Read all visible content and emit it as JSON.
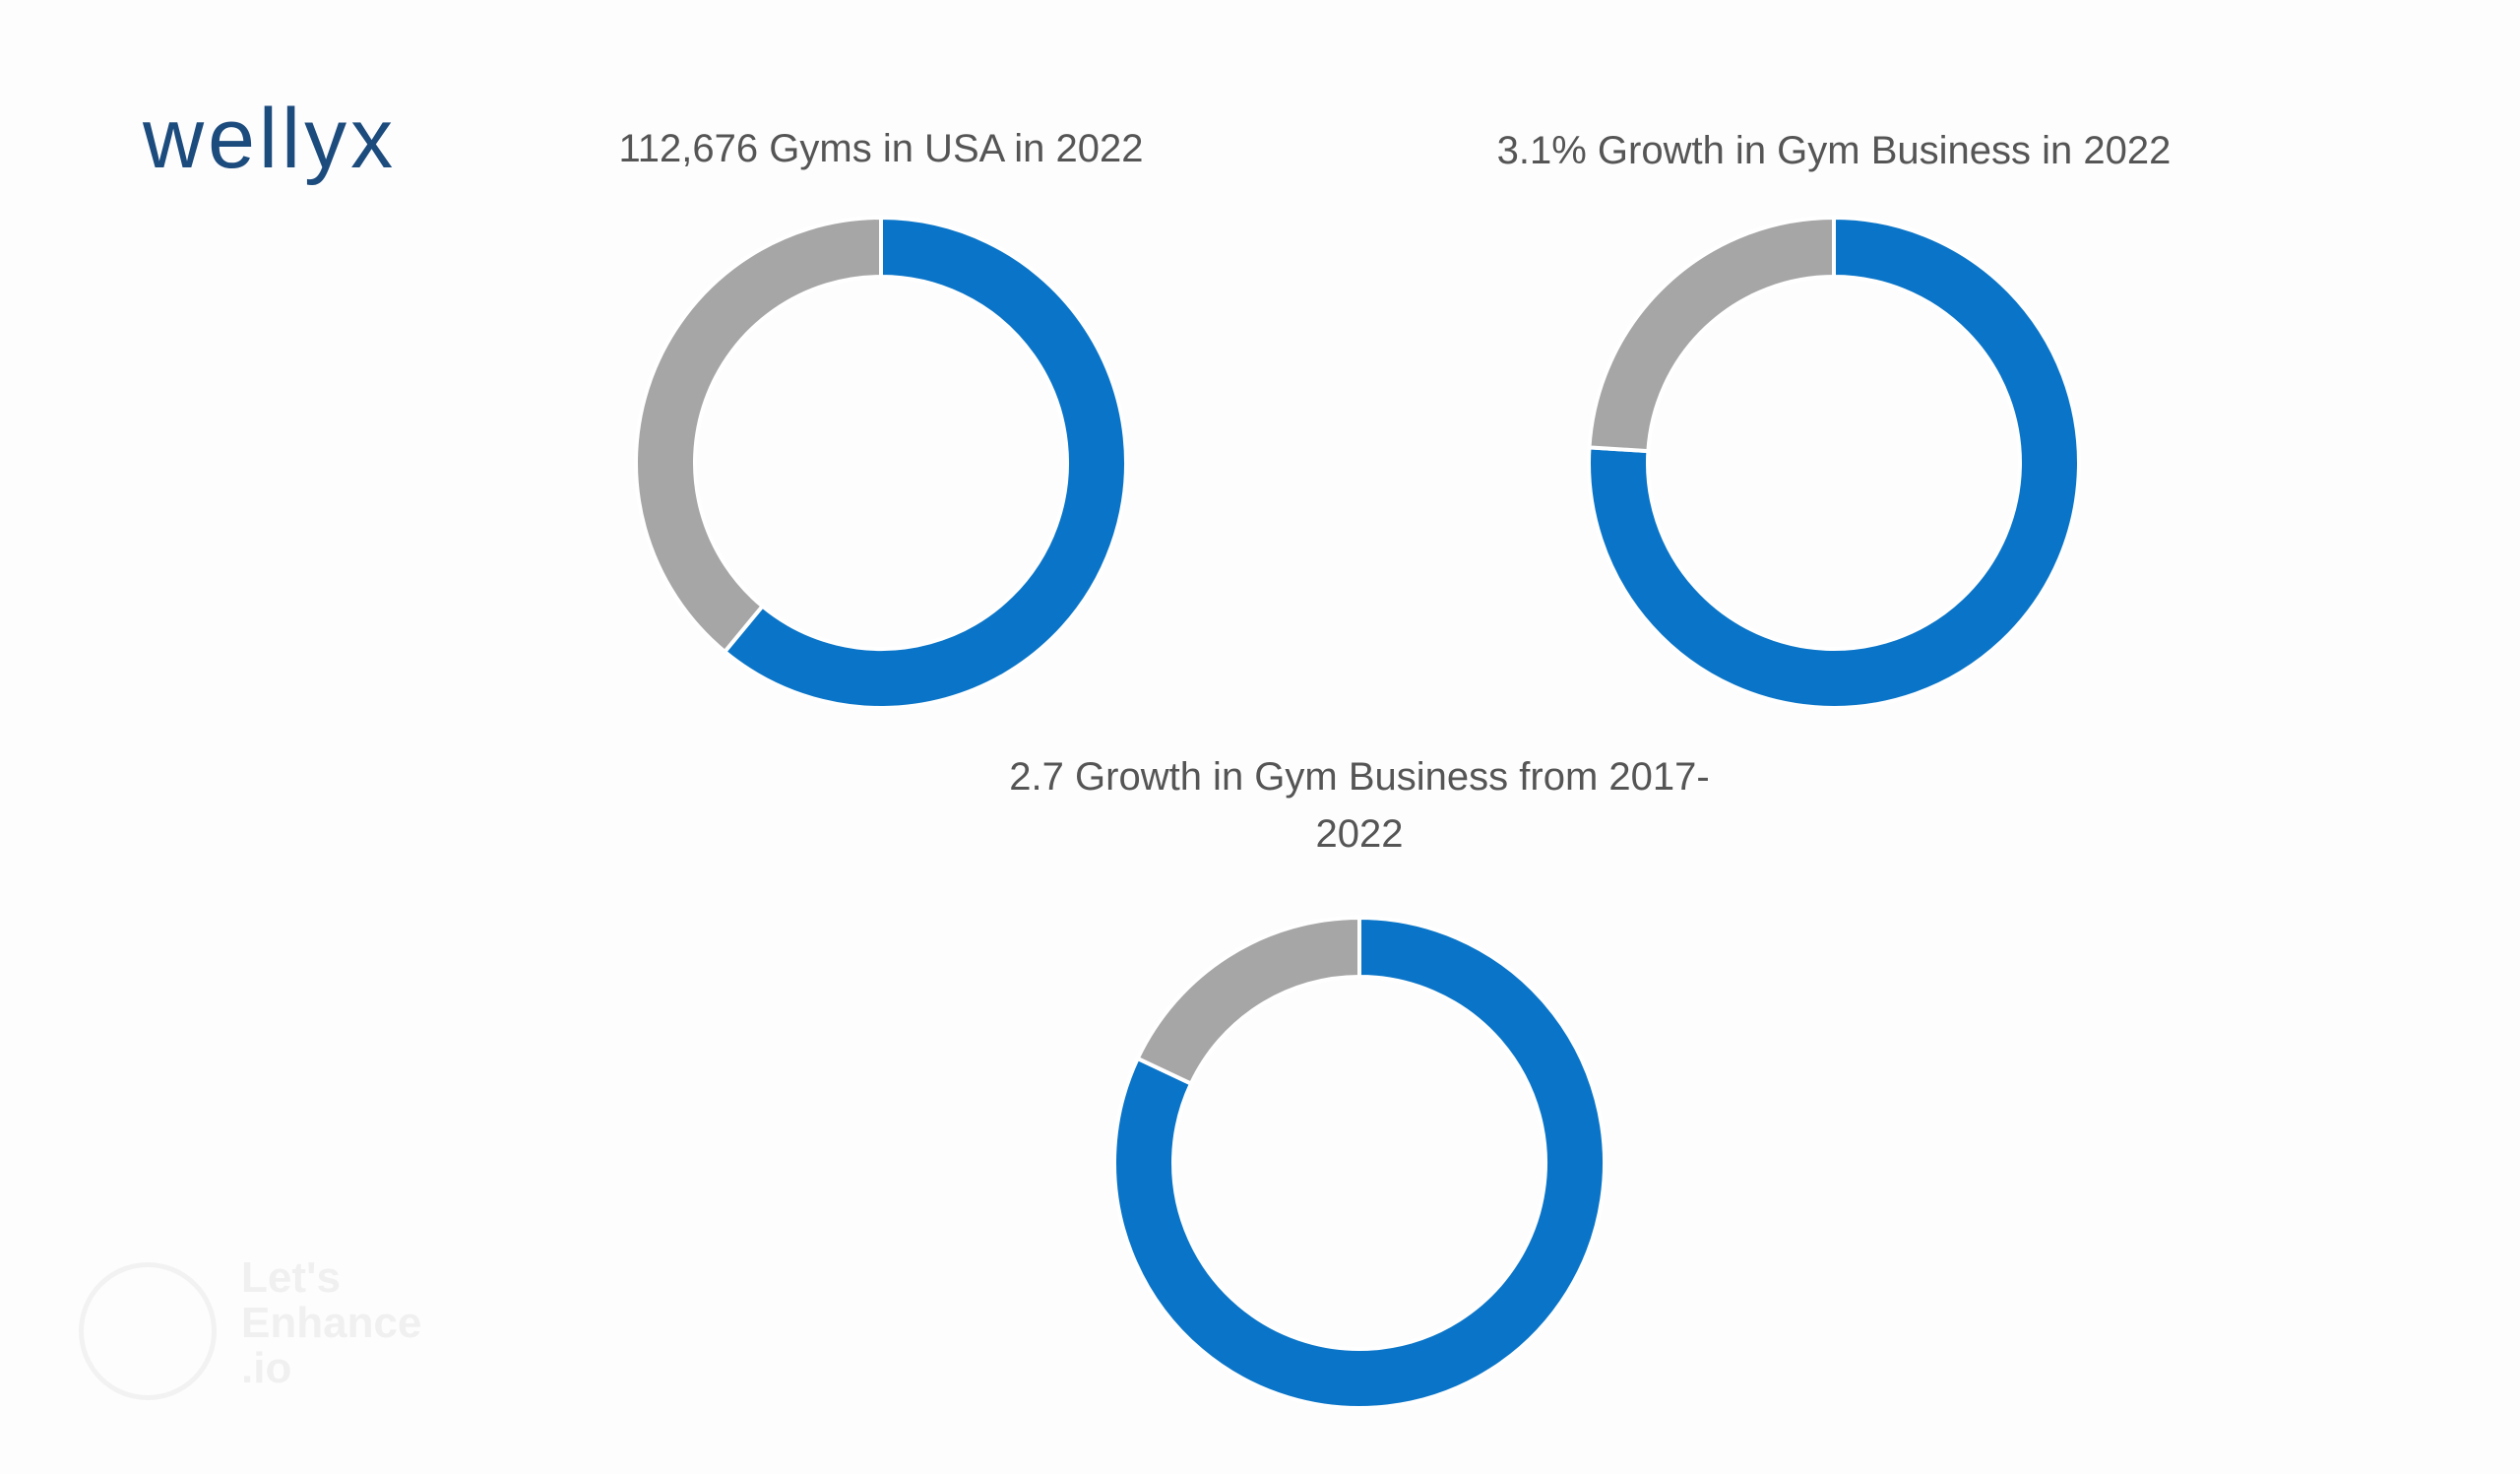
{
  "logo": "wellyx",
  "watermark": [
    "Let's",
    "Enhance",
    ".io"
  ],
  "chart_data": [
    {
      "type": "pie",
      "donut": true,
      "title": "112,676 Gyms in USA in 2022",
      "values": [
        61,
        39
      ],
      "colors": [
        "#0a75c8",
        "#a6a6a6"
      ]
    },
    {
      "type": "pie",
      "donut": true,
      "title": "3.1% Growth in Gym Business in 2022",
      "values": [
        76,
        24
      ],
      "colors": [
        "#0a75c8",
        "#a6a6a6"
      ]
    },
    {
      "type": "pie",
      "donut": true,
      "title": "2.7 Growth in Gym Business from 2017-2022",
      "values": [
        82,
        18
      ],
      "colors": [
        "#0a75c8",
        "#a6a6a6"
      ]
    }
  ]
}
